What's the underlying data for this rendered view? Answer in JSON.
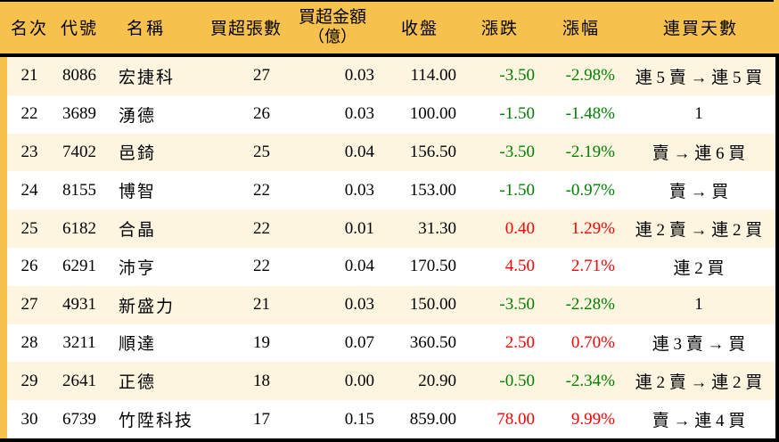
{
  "colors": {
    "header_bg": "#F6C14D",
    "row_alt_bg": "#FDF5E0",
    "row_bg": "#FFFFFF",
    "up_text": "#FF0000",
    "down_text": "#008000",
    "text": "#000000",
    "frame": "#000000"
  },
  "chart_data": {
    "type": "table",
    "columns": [
      {
        "label": "名次"
      },
      {
        "label": "代號"
      },
      {
        "label": "名稱"
      },
      {
        "label": "買超張數"
      },
      {
        "label": "買超金額",
        "label2": "（億）"
      },
      {
        "label": "收盤"
      },
      {
        "label": "漲跌"
      },
      {
        "label": "漲幅"
      },
      {
        "label": "連買天數"
      }
    ],
    "rows": [
      {
        "rank": "21",
        "code": "8086",
        "name": "宏捷科",
        "vol": "27",
        "amt": "0.03",
        "close": "114.00",
        "chg": "-3.50",
        "pct": "-2.98%",
        "streak": "連 5 賣 → 連 5 買"
      },
      {
        "rank": "22",
        "code": "3689",
        "name": "湧德",
        "vol": "26",
        "amt": "0.03",
        "close": "100.00",
        "chg": "-1.50",
        "pct": "-1.48%",
        "streak": "1"
      },
      {
        "rank": "23",
        "code": "7402",
        "name": "邑錡",
        "vol": "25",
        "amt": "0.04",
        "close": "156.50",
        "chg": "-3.50",
        "pct": "-2.19%",
        "streak": "賣 → 連 6 買"
      },
      {
        "rank": "24",
        "code": "8155",
        "name": "博智",
        "vol": "22",
        "amt": "0.03",
        "close": "153.00",
        "chg": "-1.50",
        "pct": "-0.97%",
        "streak": "賣 → 買"
      },
      {
        "rank": "25",
        "code": "6182",
        "name": "合晶",
        "vol": "22",
        "amt": "0.01",
        "close": "31.30",
        "chg": "0.40",
        "pct": "1.29%",
        "streak": "連 2 賣 → 連 2 買"
      },
      {
        "rank": "26",
        "code": "6291",
        "name": "沛亨",
        "vol": "22",
        "amt": "0.04",
        "close": "170.50",
        "chg": "4.50",
        "pct": "2.71%",
        "streak": "連 2 買"
      },
      {
        "rank": "27",
        "code": "4931",
        "name": "新盛力",
        "vol": "21",
        "amt": "0.03",
        "close": "150.00",
        "chg": "-3.50",
        "pct": "-2.28%",
        "streak": "1"
      },
      {
        "rank": "28",
        "code": "3211",
        "name": "順達",
        "vol": "19",
        "amt": "0.07",
        "close": "360.50",
        "chg": "2.50",
        "pct": "0.70%",
        "streak": "連 3 賣 → 買"
      },
      {
        "rank": "29",
        "code": "2641",
        "name": "正德",
        "vol": "18",
        "amt": "0.00",
        "close": "20.90",
        "chg": "-0.50",
        "pct": "-2.34%",
        "streak": "連 2 賣 → 連 2 買"
      },
      {
        "rank": "30",
        "code": "6739",
        "name": "竹陞科技",
        "vol": "17",
        "amt": "0.15",
        "close": "859.00",
        "chg": "78.00",
        "pct": "9.99%",
        "streak": "賣 → 連 4 買"
      }
    ]
  }
}
